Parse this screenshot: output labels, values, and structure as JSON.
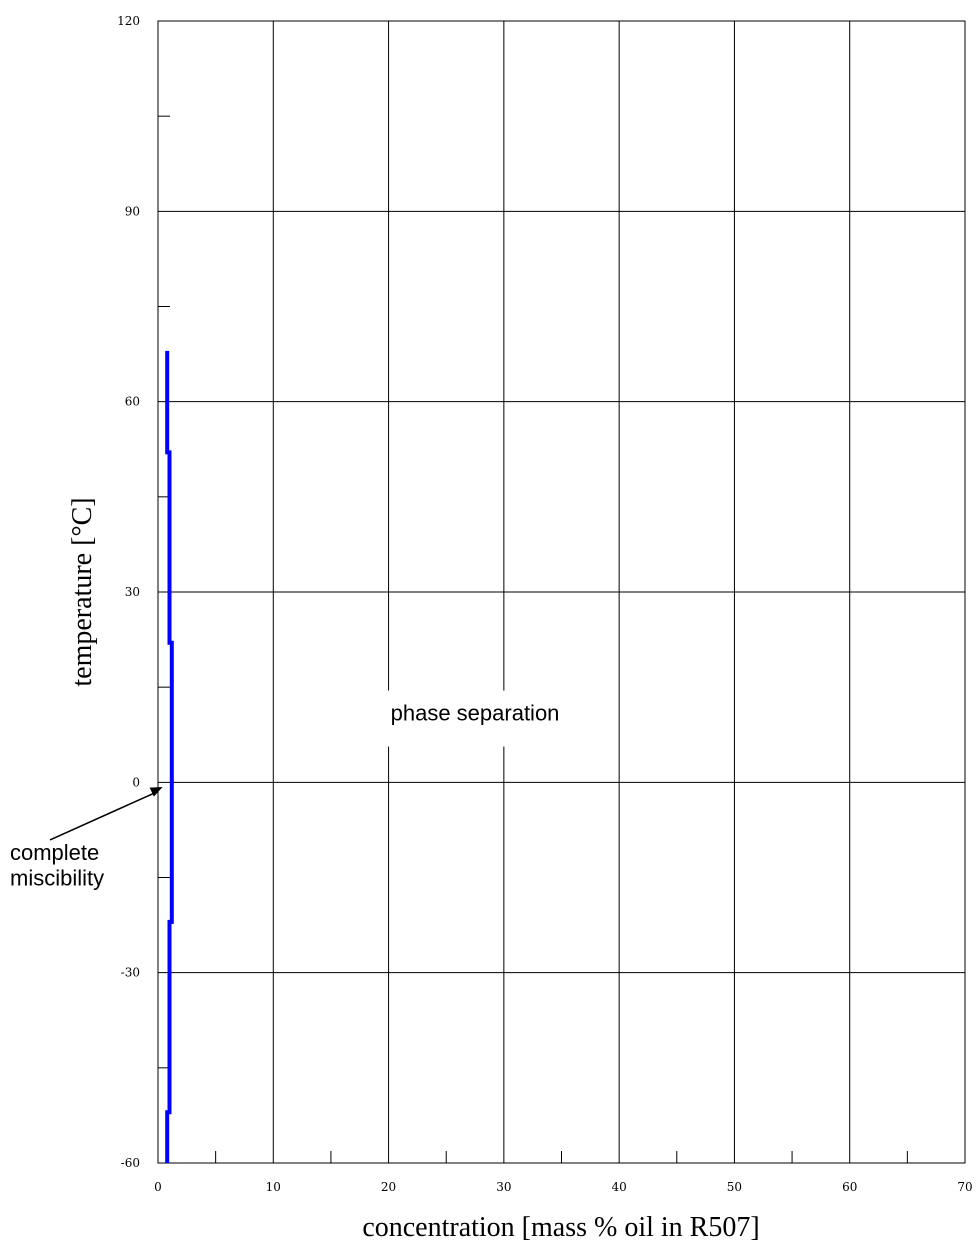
{
  "chart_data": {
    "type": "line",
    "xlabel": "concentration [mass % oil in R507]",
    "ylabel": "temperature [°C]",
    "xlim": [
      0,
      70
    ],
    "ylim": [
      -60,
      120
    ],
    "x_ticks": [
      0,
      10,
      20,
      30,
      40,
      50,
      60,
      70
    ],
    "x_tick_labels": [
      "0",
      "10",
      "20",
      "30",
      "40",
      "50",
      "60",
      "70"
    ],
    "x_minor_ticks": [
      5,
      15,
      25,
      35,
      45,
      55,
      65
    ],
    "y_ticks": [
      -60,
      -30,
      0,
      30,
      60,
      90,
      120
    ],
    "y_tick_labels": [
      "-60",
      "-30",
      "0",
      "30",
      "60",
      "90",
      "120"
    ],
    "y_minor_ticks": [
      -45,
      -15,
      15,
      45,
      75,
      105
    ],
    "grid": true,
    "series": [
      {
        "color": "#0000ff",
        "points": [
          [
            0.8,
            -60
          ],
          [
            0.8,
            -52
          ],
          [
            1.0,
            -52
          ],
          [
            1.0,
            -22
          ],
          [
            1.2,
            -22
          ],
          [
            1.2,
            22
          ],
          [
            1.0,
            22
          ],
          [
            1.0,
            52
          ],
          [
            0.8,
            52
          ],
          [
            0.8,
            68
          ]
        ]
      }
    ],
    "annotations": [
      {
        "text": "phase separation",
        "x": 27.5,
        "y": 11
      },
      {
        "text": "complete",
        "x": -6,
        "y": -11
      },
      {
        "text": "miscibility",
        "x": -6,
        "y": -15
      }
    ],
    "arrow": {
      "from": [
        -6.5,
        -7.5
      ],
      "to": [
        0.4,
        -2
      ]
    }
  }
}
